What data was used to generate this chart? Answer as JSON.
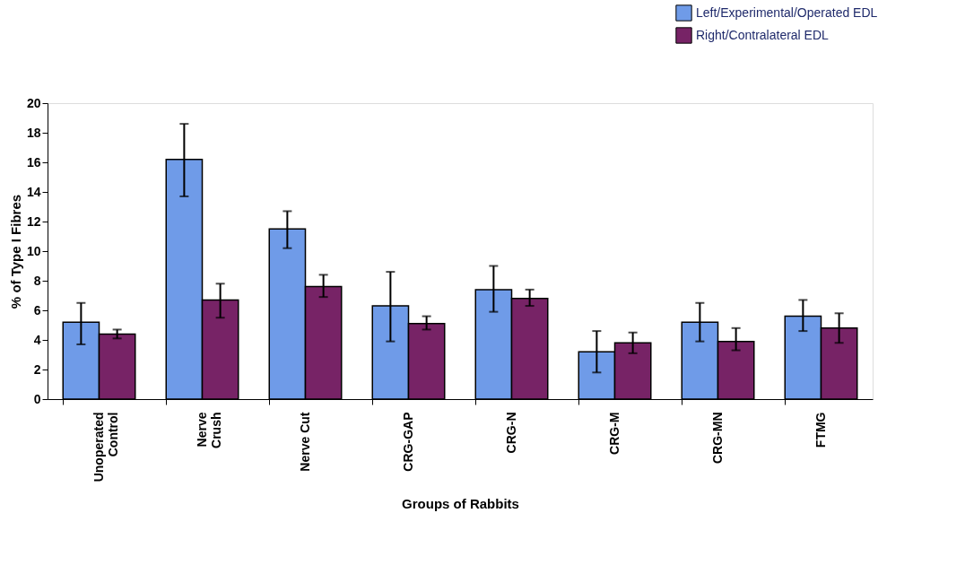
{
  "chart_data": {
    "type": "bar",
    "xlabel": "Groups of Rabbits",
    "ylabel": "% of Type I Fibres",
    "categories": [
      "Unoperated\nControl",
      "Nerve\nCrush",
      "Nerve Cut",
      "CRG-GAP",
      "CRG-N",
      "CRG-M",
      "CRG-MN",
      "FTMG"
    ],
    "series": [
      {
        "name": "Left/Experimental/Operated EDL",
        "color": "#6f9be8",
        "values": [
          5.2,
          16.2,
          11.5,
          6.3,
          7.4,
          3.2,
          5.2,
          5.6
        ],
        "errors": [
          [
            3.7,
            6.5
          ],
          [
            13.7,
            18.6
          ],
          [
            10.2,
            12.7
          ],
          [
            3.9,
            8.6
          ],
          [
            5.9,
            9.0
          ],
          [
            1.8,
            4.6
          ],
          [
            3.9,
            6.5
          ],
          [
            4.6,
            6.7
          ]
        ]
      },
      {
        "name": "Right/Contralateral EDL",
        "color": "#772366",
        "values": [
          4.4,
          6.7,
          7.6,
          5.1,
          6.8,
          3.8,
          3.9,
          4.8
        ],
        "errors": [
          [
            4.1,
            4.7
          ],
          [
            5.5,
            7.8
          ],
          [
            6.9,
            8.4
          ],
          [
            4.7,
            5.6
          ],
          [
            6.3,
            7.4
          ],
          [
            3.1,
            4.5
          ],
          [
            3.3,
            4.8
          ],
          [
            3.8,
            5.8
          ]
        ]
      }
    ],
    "ylim": [
      0,
      20
    ],
    "yticks": [
      0,
      2,
      4,
      6,
      8,
      10,
      12,
      14,
      16,
      18,
      20
    ],
    "grid": false,
    "legend": "top right"
  }
}
